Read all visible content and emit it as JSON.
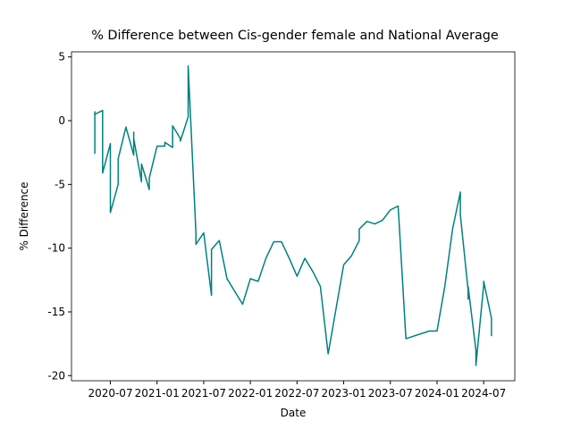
{
  "chart_data": {
    "type": "line",
    "title": "% Difference between Cis-gender female and National Average",
    "xlabel": "Date",
    "ylabel": "% Difference",
    "x": [
      "2020-05",
      "2020-05",
      "2020-05",
      "2020-06",
      "2020-06",
      "2020-06",
      "2020-07",
      "2020-07",
      "2020-08",
      "2020-08",
      "2020-09",
      "2020-09",
      "2020-10",
      "2020-10",
      "2020-10",
      "2020-11",
      "2020-11",
      "2020-12",
      "2020-12",
      "2021-01",
      "2021-02",
      "2021-02",
      "2021-03",
      "2021-03",
      "2021-04",
      "2021-04",
      "2021-05",
      "2021-05",
      "2021-06",
      "2021-06",
      "2021-07",
      "2021-08",
      "2021-08",
      "2021-08",
      "2021-09",
      "2021-10",
      "2021-12",
      "2022-01",
      "2022-02",
      "2022-03",
      "2022-04",
      "2022-05",
      "2022-06",
      "2022-07",
      "2022-08",
      "2022-09",
      "2022-10",
      "2022-11",
      "2022-12",
      "2023-01",
      "2023-02",
      "2023-03",
      "2023-03",
      "2023-04",
      "2023-05",
      "2023-06",
      "2023-07",
      "2023-08",
      "2023-09",
      "2023-12",
      "2024-01",
      "2024-02",
      "2024-03",
      "2024-04",
      "2024-04",
      "2024-05",
      "2024-05",
      "2024-05",
      "2024-06",
      "2024-06",
      "2024-07",
      "2024-07",
      "2024-08",
      "2024-08"
    ],
    "series": [
      {
        "name": "% Difference",
        "color": "#008080",
        "values": [
          -2.6,
          0.7,
          0.5,
          0.8,
          0.7,
          -4.1,
          -1.8,
          -7.2,
          -5,
          -3,
          -0.5,
          -0.5,
          -2.7,
          -0.9,
          -1.4,
          -4.8,
          -3.4,
          -5.4,
          -4.5,
          -2,
          -2,
          -1.7,
          -2.1,
          -0.4,
          -1.4,
          -1.6,
          0.3,
          4.3,
          -8.8,
          -9.7,
          -8.8,
          -13.7,
          -10.2,
          -10.1,
          -9.4,
          -12.4,
          -14.4,
          -12.4,
          -12.6,
          -10.8,
          -9.5,
          -9.5,
          -10.8,
          -12.2,
          -10.8,
          -11.8,
          -13,
          -18.3,
          -14.8,
          -11.3,
          -10.6,
          -9.4,
          -8.5,
          -7.9,
          -8.1,
          -7.8,
          -7,
          -6.7,
          -17.1,
          -16.5,
          -16.5,
          -13,
          -8.5,
          -5.6,
          -7.4,
          -13.3,
          -14,
          -13,
          -18,
          -19.2,
          -12.9,
          -12.6,
          -15.5,
          -16.9
        ]
      }
    ],
    "xlim": [
      "2020-02",
      "2024-11"
    ],
    "xticks": [
      "2020-07",
      "2021-01",
      "2021-07",
      "2022-01",
      "2022-07",
      "2023-01",
      "2023-07",
      "2024-01",
      "2024-07"
    ],
    "ylim": [
      -20.4,
      5.4
    ],
    "yticks": [
      -20,
      -15,
      -10,
      -5,
      0,
      5
    ]
  }
}
